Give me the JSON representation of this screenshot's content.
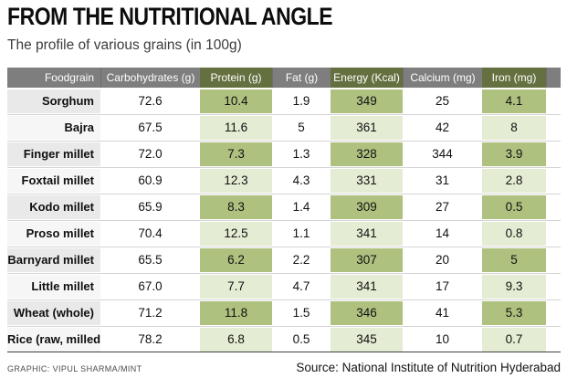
{
  "header": {
    "title": "FROM THE NUTRITIONAL ANGLE",
    "subtitle": "The profile of various grains (in 100g)"
  },
  "footer": {
    "credit": "GRAPHIC: VIPUL SHARMA/MINT",
    "source": "Source: National Institute of Nutrition Hyderabad"
  },
  "colors": {
    "header_gray": "#7e7e7e",
    "header_olive": "#64703f",
    "green_dark": "#aec17f",
    "green_light": "#e4ecd3",
    "name_col_dark": "#e9e9e9",
    "name_col_light": "#f6f6f6",
    "row_hairline": "#d4d4d4",
    "bottom_rule": "#3f3f3f"
  },
  "chart_data": {
    "type": "table",
    "title": "FROM THE NUTRITIONAL ANGLE",
    "subtitle": "The profile of various grains (in 100g)",
    "columns": [
      {
        "key": "foodgrain",
        "label": "Foodgrain",
        "header_bg": "gray",
        "body": "name"
      },
      {
        "key": "carbohydrates",
        "label": "Carbohydrates (g)",
        "header_bg": "gray",
        "body": "plain"
      },
      {
        "key": "protein",
        "label": "Protein (g)",
        "header_bg": "olive",
        "body": "green"
      },
      {
        "key": "fat",
        "label": "Fat (g)",
        "header_bg": "gray",
        "body": "plain"
      },
      {
        "key": "energy",
        "label": "Energy (Kcal)",
        "header_bg": "olive",
        "body": "green"
      },
      {
        "key": "calcium",
        "label": "Calcium (mg)",
        "header_bg": "gray",
        "body": "plain"
      },
      {
        "key": "iron",
        "label": "Iron (mg)",
        "header_bg": "olive",
        "body": "green"
      },
      {
        "key": "spacer",
        "label": "",
        "header_bg": "gray",
        "body": "stub"
      }
    ],
    "rows": [
      {
        "cells": [
          "Sorghum",
          "72.6",
          "10.4",
          "1.9",
          "349",
          "25",
          "4.1"
        ]
      },
      {
        "cells": [
          "Bajra",
          "67.5",
          "11.6",
          "5",
          "361",
          "42",
          "8"
        ]
      },
      {
        "cells": [
          "Finger millet",
          "72.0",
          "7.3",
          "1.3",
          "328",
          "344",
          "3.9"
        ]
      },
      {
        "cells": [
          "Foxtail millet",
          "60.9",
          "12.3",
          "4.3",
          "331",
          "31",
          "2.8"
        ]
      },
      {
        "cells": [
          "Kodo millet",
          "65.9",
          "8.3",
          "1.4",
          "309",
          "27",
          "0.5"
        ]
      },
      {
        "cells": [
          "Proso millet",
          "70.4",
          "12.5",
          "1.1",
          "341",
          "14",
          "0.8"
        ]
      },
      {
        "cells": [
          "Barnyard millet",
          "65.5",
          "6.2",
          "2.2",
          "307",
          "20",
          "5"
        ]
      },
      {
        "cells": [
          "Little millet",
          "67.0",
          "7.7",
          "4.7",
          "341",
          "17",
          "9.3"
        ]
      },
      {
        "cells": [
          "Wheat (whole)",
          "71.2",
          "11.8",
          "1.5",
          "346",
          "41",
          "5.3"
        ]
      },
      {
        "cells": [
          "Rice (raw, milled)",
          "78.2",
          "6.8",
          "0.5",
          "345",
          "10",
          "0.7"
        ]
      }
    ]
  }
}
